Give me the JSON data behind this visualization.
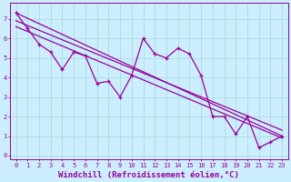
{
  "xlabel": "Windchill (Refroidissement éolien,°C)",
  "bg_color": "#cceeff",
  "line_color": "#990099",
  "grid_color": "#aadddd",
  "xlim": [
    -0.5,
    23.5
  ],
  "ylim": [
    -0.2,
    7.8
  ],
  "xticks": [
    0,
    1,
    2,
    3,
    4,
    5,
    6,
    7,
    8,
    9,
    10,
    11,
    12,
    13,
    14,
    15,
    16,
    17,
    18,
    19,
    20,
    21,
    22,
    23
  ],
  "yticks": [
    0,
    1,
    2,
    3,
    4,
    5,
    6,
    7
  ],
  "data_x": [
    0,
    1,
    2,
    3,
    4,
    5,
    6,
    7,
    8,
    9,
    10,
    11,
    12,
    13,
    14,
    15,
    16,
    17,
    18,
    19,
    20,
    21,
    22,
    23
  ],
  "data_y": [
    7.3,
    6.5,
    5.7,
    5.3,
    4.4,
    5.3,
    5.1,
    3.7,
    3.8,
    3.0,
    4.1,
    6.0,
    5.2,
    5.0,
    5.5,
    5.2,
    4.1,
    2.0,
    2.0,
    1.1,
    2.0,
    0.4,
    0.7,
    1.0
  ],
  "line1_x": [
    0,
    23
  ],
  "line1_y": [
    7.3,
    1.0
  ],
  "line2_x": [
    0,
    23
  ],
  "line2_y": [
    6.9,
    1.3
  ],
  "line3_x": [
    0,
    23
  ],
  "line3_y": [
    6.6,
    0.9
  ],
  "font_size": 6,
  "tick_font_size": 5,
  "xlabel_fontsize": 6.5
}
